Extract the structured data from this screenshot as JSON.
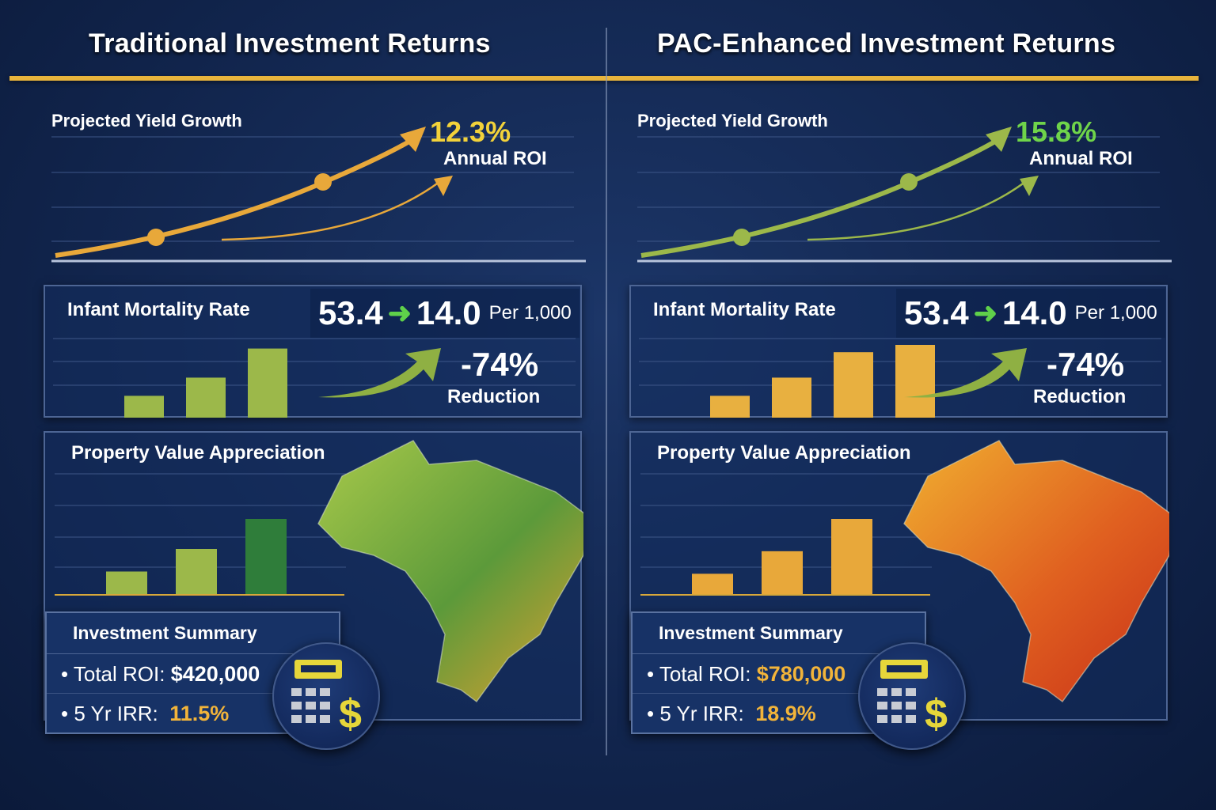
{
  "panels": [
    {
      "title": "Traditional Investment Returns",
      "yield_label": "Projected Yield Growth",
      "roi": "12.3%",
      "roi_label": "Annual ROI",
      "roi_color": "#f2d23a",
      "line_color": "#e8a83a",
      "mortality": {
        "label": "Infant Mortality Rate",
        "from": "53.4",
        "arrow": "➜",
        "to": "14.0",
        "unit": "Per 1,000",
        "change": "-74%",
        "change_label": "Reduction",
        "bar_levels": [
          0.3,
          0.55,
          0.95
        ],
        "bar_color": "#9cb84a"
      },
      "property": {
        "label": "Property Value Appreciation",
        "bar_levels": [
          0.3,
          0.6,
          1.0
        ],
        "bar_colors": [
          "#9cb84a",
          "#9cb84a",
          "#2f7d3a"
        ],
        "map_colors": [
          "#a8c94a",
          "#5c9a3a",
          "#e0a030"
        ]
      },
      "summary": {
        "title": "Investment Summary",
        "total_label": "• Total ROI:",
        "total_value": "$420,000",
        "total_color": "#ffffff",
        "irr_label": "• 5 Yr IRR:",
        "irr_value": "11.5%"
      }
    },
    {
      "title": "PAC-Enhanced Investment Returns",
      "yield_label": "Projected Yield Growth",
      "roi": "15.8%",
      "roi_label": "Annual ROI",
      "roi_color": "#6fd44a",
      "line_color": "#9cb84a",
      "mortality": {
        "label": "Infant Mortality Rate",
        "from": "53.4",
        "arrow": "➜",
        "to": "14.0",
        "unit": "Per 1,000",
        "change": "-74%",
        "change_label": "Reduction",
        "bar_levels": [
          0.3,
          0.55,
          0.9,
          1.0
        ],
        "bar_color": "#e8b040"
      },
      "property": {
        "label": "Property Value Appreciation",
        "bar_levels": [
          0.27,
          0.57,
          1.0
        ],
        "bar_colors": [
          "#e8a83a",
          "#e8a83a",
          "#e8a83a"
        ],
        "map_colors": [
          "#f0b030",
          "#e06020",
          "#c83018"
        ]
      },
      "summary": {
        "title": "Investment Summary",
        "total_label": "• Total ROI:",
        "total_value": "$780,000",
        "total_color": "#f2b43a",
        "irr_label": "• 5 Yr IRR:",
        "irr_value": "18.9%"
      }
    }
  ],
  "icons": {
    "calculator": "calculator-dollar-icon"
  }
}
